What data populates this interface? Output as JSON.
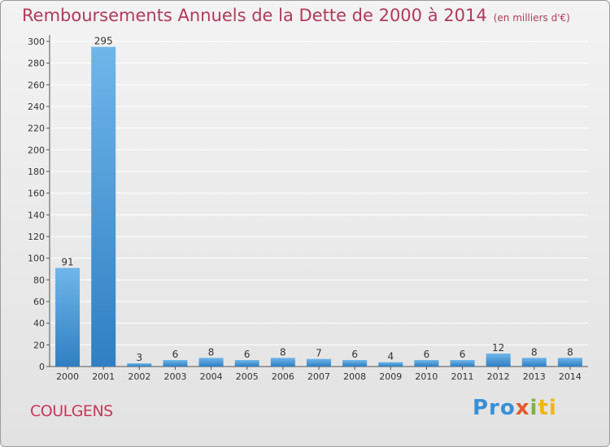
{
  "header": {
    "title": "Remboursements Annuels de la Dette de 2000 à 2014",
    "unit": "(en milliers d'€)"
  },
  "footer": {
    "commune": "COULGENS",
    "logo_parts": [
      "Pro",
      "x",
      "i",
      "ti"
    ]
  },
  "colors": {
    "title": "#b03a5a",
    "bar_top": "#6fb6ea",
    "bar_bottom": "#2f7fc2",
    "grid": "#ffffff"
  },
  "chart_data": {
    "type": "bar",
    "title": "Remboursements Annuels de la Dette de 2000 à 2014",
    "categories": [
      "2000",
      "2001",
      "2002",
      "2003",
      "2004",
      "2005",
      "2006",
      "2007",
      "2008",
      "2009",
      "2010",
      "2011",
      "2012",
      "2013",
      "2014"
    ],
    "values": [
      91,
      295,
      3,
      6,
      8,
      6,
      8,
      7,
      6,
      4,
      6,
      6,
      12,
      8,
      8
    ],
    "xlabel": "",
    "ylabel": "",
    "ylim": [
      0,
      300
    ],
    "yticks": [
      0,
      20,
      40,
      60,
      80,
      100,
      120,
      140,
      160,
      180,
      200,
      220,
      240,
      260,
      280,
      300
    ],
    "grid": true,
    "data_labels": true
  }
}
